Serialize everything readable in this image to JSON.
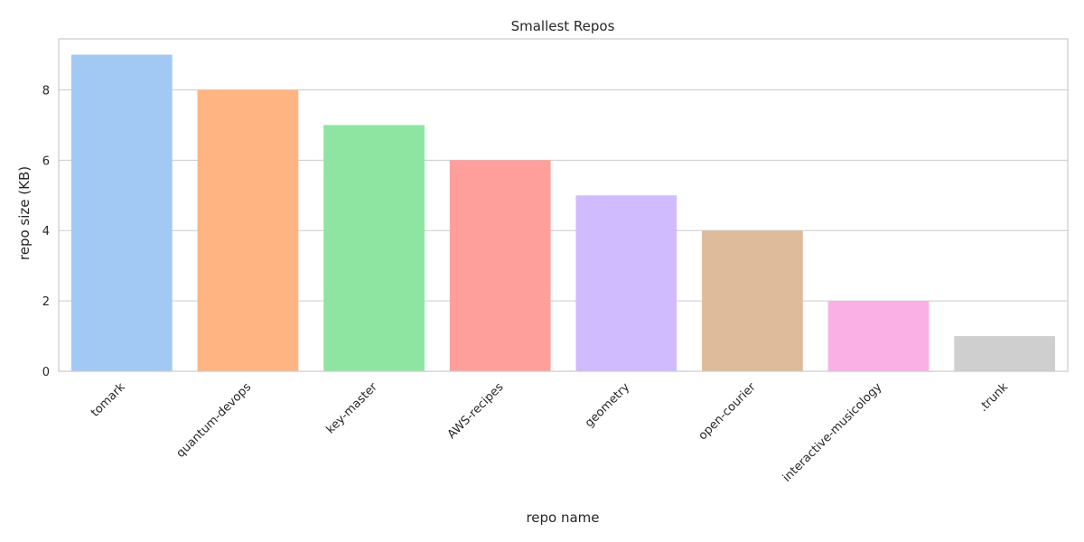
{
  "chart_data": {
    "type": "bar",
    "title": "Smallest Repos",
    "xlabel": "repo name",
    "ylabel": "repo size (KB)",
    "categories": [
      "tomark",
      "quantum-devops",
      "key-master",
      "AWS-recipes",
      "geometry",
      "open-courier",
      "interactive-musicology",
      ".trunk"
    ],
    "values": [
      9,
      8,
      7,
      6,
      5,
      4,
      2,
      1
    ],
    "colors": [
      "#a1c9f4",
      "#ffb482",
      "#8de5a1",
      "#ff9f9b",
      "#d0bbff",
      "#debb9b",
      "#fab0e4",
      "#cfcfcf"
    ],
    "yticks": [
      0,
      2,
      4,
      6,
      8
    ],
    "ylim": [
      0,
      9.45
    ],
    "grid": true,
    "legend": "none"
  }
}
